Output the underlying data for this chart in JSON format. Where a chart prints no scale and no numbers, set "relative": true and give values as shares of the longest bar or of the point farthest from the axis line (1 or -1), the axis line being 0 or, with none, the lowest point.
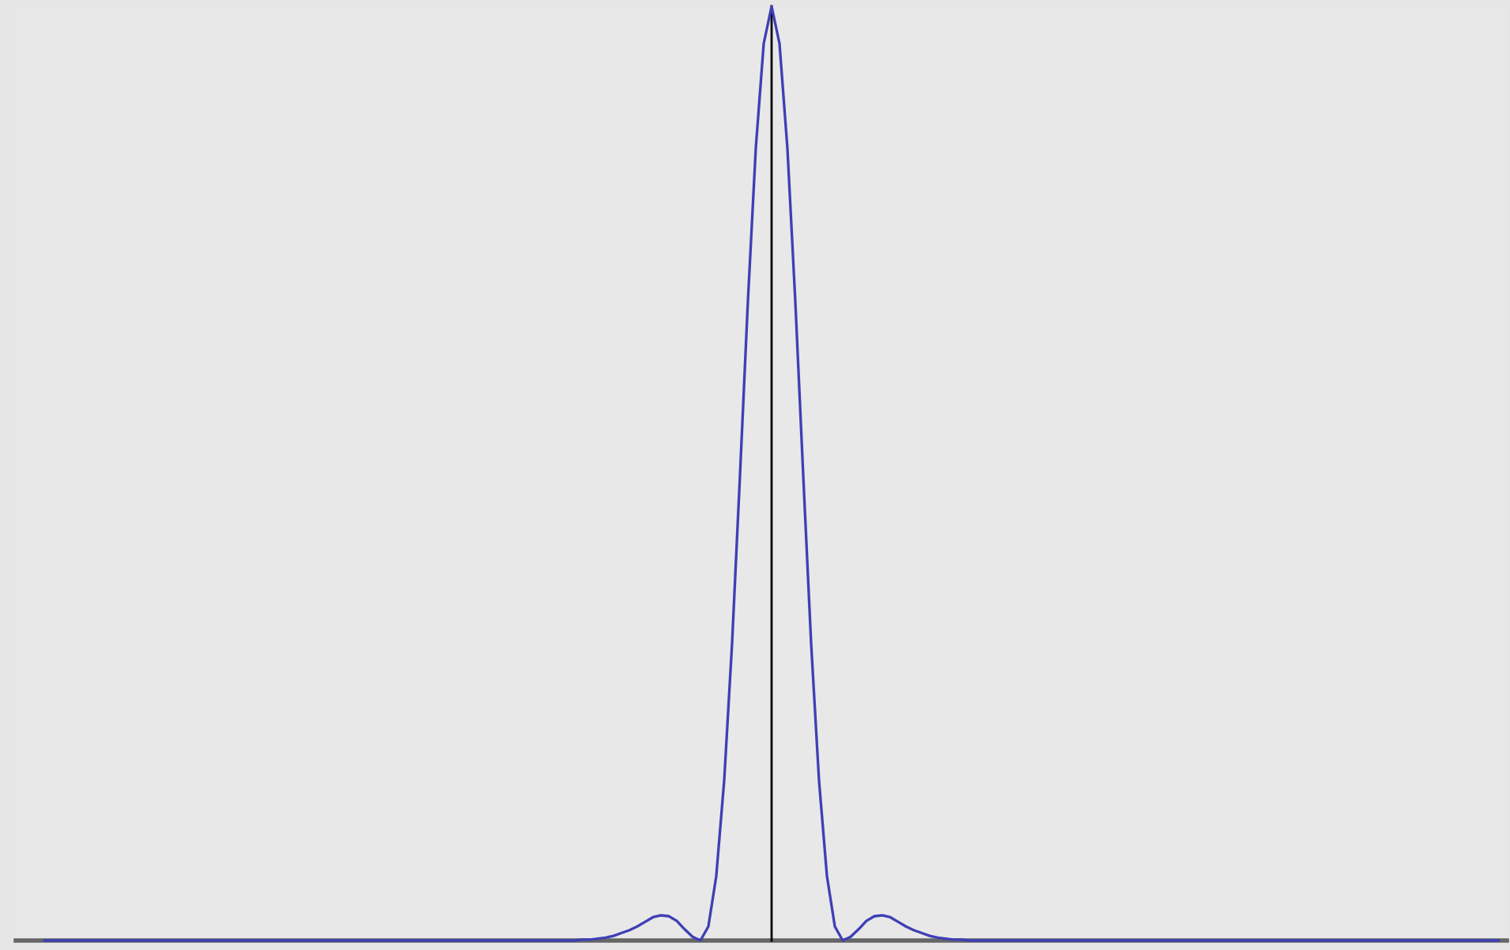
{
  "chart_data": {
    "type": "line",
    "relative": true,
    "marker": "none",
    "line_style": "solid",
    "categories": [
      null,
      null,
      null,
      null,
      null,
      null,
      null,
      null,
      null,
      null,
      null,
      null,
      null,
      null,
      null,
      null,
      null,
      null,
      null,
      null,
      null,
      null,
      null,
      null,
      null,
      null,
      null,
      null,
      null,
      null,
      null,
      null,
      null,
      null,
      null,
      null,
      null,
      null,
      null,
      null,
      null,
      null,
      null,
      null,
      null,
      null,
      null,
      null,
      null,
      null,
      null,
      null,
      null,
      null,
      null,
      null,
      null,
      null,
      null,
      null,
      null,
      null,
      null,
      null,
      null,
      null,
      null,
      null,
      null,
      null,
      null,
      null,
      null,
      null,
      null,
      null,
      null,
      null,
      null,
      null,
      null,
      null,
      null,
      null,
      null,
      null,
      null,
      null,
      null,
      null,
      null,
      null,
      null,
      null,
      null,
      null,
      null,
      null,
      null,
      null,
      null,
      null,
      null,
      null,
      null,
      null,
      null,
      null,
      null,
      null,
      null,
      null,
      null,
      null,
      null,
      null,
      null,
      null,
      null,
      null,
      null,
      null,
      null,
      null,
      null,
      null,
      null,
      null,
      null,
      null,
      null,
      null,
      null,
      null,
      null,
      null,
      null,
      null,
      null,
      null,
      null,
      null,
      null,
      null,
      null,
      null,
      null,
      null,
      null,
      null,
      null,
      null,
      null,
      null,
      null,
      null,
      null,
      null,
      null,
      null,
      null,
      null,
      null,
      null,
      null,
      null,
      null,
      null,
      null,
      null,
      null,
      null,
      null,
      null,
      null,
      null,
      null,
      null,
      null,
      null,
      null,
      null,
      null,
      null,
      null
    ],
    "series": [
      {
        "color": "#3f3fb5",
        "values": [
          0,
          0,
          0,
          0,
          0,
          0,
          0,
          0,
          0,
          0,
          0,
          0,
          0,
          0,
          0,
          0,
          0,
          0,
          0,
          0,
          0,
          0,
          0,
          0,
          0,
          0,
          0,
          0,
          0,
          0,
          0,
          0,
          0,
          0,
          0,
          0,
          0,
          0,
          0,
          0,
          0,
          0,
          0,
          0,
          0,
          0,
          0,
          0,
          0,
          0,
          0,
          0,
          0,
          0,
          0,
          0,
          0,
          0,
          0,
          0,
          0,
          0,
          0,
          0,
          0,
          0,
          0,
          0,
          0.001,
          0.001,
          0.002,
          0.003,
          0.005,
          0.008,
          0.011,
          0.015,
          0.02,
          0.025,
          0.027,
          0.026,
          0.021,
          0.012,
          0.004,
          0,
          0.015,
          0.069,
          0.171,
          0.318,
          0.498,
          0.684,
          0.848,
          0.96,
          1,
          0.96,
          0.848,
          0.684,
          0.498,
          0.318,
          0.171,
          0.069,
          0.015,
          0,
          0.004,
          0.012,
          0.021,
          0.026,
          0.027,
          0.025,
          0.02,
          0.015,
          0.011,
          0.008,
          0.005,
          0.003,
          0.002,
          0.001,
          0.001,
          0,
          0,
          0,
          0,
          0,
          0,
          0,
          0,
          0,
          0,
          0,
          0,
          0,
          0,
          0,
          0,
          0,
          0,
          0,
          0,
          0,
          0,
          0,
          0,
          0,
          0,
          0,
          0,
          0,
          0,
          0,
          0,
          0,
          0,
          0,
          0,
          0,
          0,
          0,
          0,
          0,
          0,
          0,
          0,
          0,
          0,
          0,
          0,
          0,
          0,
          0,
          0,
          0,
          0,
          0,
          0,
          0,
          0,
          0,
          0,
          0,
          0,
          0,
          0,
          0,
          0,
          0,
          0
        ]
      }
    ]
  }
}
